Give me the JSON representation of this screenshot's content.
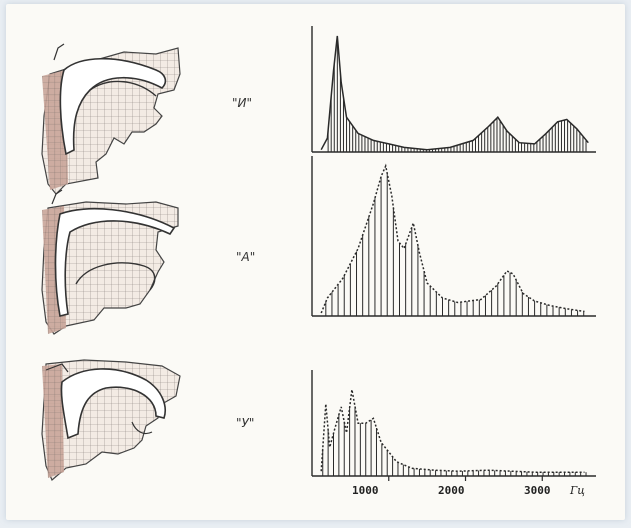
{
  "figure": {
    "background": "#fbfaf6",
    "ink": "#2a2a2a",
    "tissue": "#c9a59a",
    "panels": [
      {
        "sound": "\"И\"",
        "harmonics_hz": [
          210,
          250,
          290,
          330,
          370,
          410,
          450,
          490,
          530,
          570,
          610,
          650,
          690,
          730,
          770,
          810,
          850,
          890,
          930,
          970,
          1010,
          1050,
          1090,
          1130,
          1170,
          1210,
          1250,
          1290,
          1330,
          1370,
          1410,
          1450,
          1490,
          1530,
          1570,
          1610,
          1650,
          1690,
          1730,
          1770,
          1810,
          1850,
          1890,
          1930,
          1970,
          2010,
          2050,
          2090,
          2130,
          2170,
          2210,
          2250,
          2290,
          2330,
          2370,
          2410,
          2450,
          2490,
          2530,
          2570,
          2610,
          2650,
          2690,
          2730,
          2770,
          2810,
          2850,
          2890,
          2930,
          2970,
          3010,
          3050,
          3090,
          3130,
          3170,
          3210,
          3250,
          3290,
          3330,
          3370,
          3410,
          3450,
          3490,
          3530,
          3570
        ],
        "envelope": [
          [
            120,
            0.02
          ],
          [
            200,
            0.12
          ],
          [
            280,
            0.7
          ],
          [
            330,
            1.0
          ],
          [
            380,
            0.6
          ],
          [
            450,
            0.3
          ],
          [
            600,
            0.16
          ],
          [
            800,
            0.1
          ],
          [
            1000,
            0.07
          ],
          [
            1200,
            0.04
          ],
          [
            1500,
            0.02
          ],
          [
            1800,
            0.04
          ],
          [
            2100,
            0.1
          ],
          [
            2300,
            0.22
          ],
          [
            2420,
            0.3
          ],
          [
            2540,
            0.18
          ],
          [
            2700,
            0.08
          ],
          [
            2900,
            0.07
          ],
          [
            3050,
            0.16
          ],
          [
            3200,
            0.26
          ],
          [
            3320,
            0.28
          ],
          [
            3450,
            0.2
          ],
          [
            3600,
            0.08
          ]
        ]
      },
      {
        "sound": "\"А\"",
        "harmonics_hz": [
          180,
          260,
          340,
          420,
          500,
          580,
          660,
          740,
          820,
          900,
          980,
          1060,
          1140,
          1220,
          1300,
          1380,
          1460,
          1540,
          1620,
          1700,
          1780,
          1860,
          1940,
          2020,
          2100,
          2180,
          2260,
          2340,
          2420,
          2500,
          2580,
          2660,
          2740,
          2820,
          2900,
          2980,
          3060,
          3140,
          3220,
          3300,
          3380,
          3460,
          3540
        ],
        "envelope": [
          [
            120,
            0.02
          ],
          [
            200,
            0.12
          ],
          [
            400,
            0.25
          ],
          [
            600,
            0.45
          ],
          [
            800,
            0.75
          ],
          [
            900,
            0.93
          ],
          [
            960,
            1.0
          ],
          [
            1040,
            0.8
          ],
          [
            1120,
            0.5
          ],
          [
            1200,
            0.45
          ],
          [
            1320,
            0.62
          ],
          [
            1400,
            0.42
          ],
          [
            1500,
            0.22
          ],
          [
            1700,
            0.12
          ],
          [
            1900,
            0.09
          ],
          [
            2200,
            0.11
          ],
          [
            2400,
            0.2
          ],
          [
            2540,
            0.3
          ],
          [
            2620,
            0.28
          ],
          [
            2750,
            0.15
          ],
          [
            2900,
            0.1
          ],
          [
            3100,
            0.07
          ],
          [
            3300,
            0.05
          ],
          [
            3550,
            0.03
          ]
        ]
      },
      {
        "sound": "\"У\"",
        "harmonics_hz": [
          140,
          210,
          280,
          350,
          420,
          490,
          560,
          630,
          700,
          770,
          840,
          910,
          980,
          1050,
          1120,
          1190,
          1260,
          1330,
          1400,
          1470,
          1540,
          1610,
          1680,
          1750,
          1820,
          1890,
          1960,
          2030,
          2100,
          2170,
          2240,
          2310,
          2380,
          2450,
          2520,
          2590,
          2660,
          2730,
          2800,
          2870,
          2940,
          3010,
          3080,
          3150,
          3220,
          3290,
          3360,
          3430,
          3500,
          3570
        ],
        "envelope": [
          [
            120,
            0.05
          ],
          [
            180,
            0.75
          ],
          [
            230,
            0.3
          ],
          [
            300,
            0.5
          ],
          [
            380,
            0.72
          ],
          [
            450,
            0.45
          ],
          [
            520,
            0.9
          ],
          [
            600,
            0.55
          ],
          [
            700,
            0.55
          ],
          [
            800,
            0.6
          ],
          [
            900,
            0.35
          ],
          [
            1000,
            0.25
          ],
          [
            1100,
            0.15
          ],
          [
            1300,
            0.08
          ],
          [
            1600,
            0.06
          ],
          [
            1900,
            0.05
          ],
          [
            2300,
            0.06
          ],
          [
            2600,
            0.05
          ],
          [
            2900,
            0.04
          ],
          [
            3300,
            0.04
          ],
          [
            3550,
            0.04
          ]
        ]
      }
    ],
    "axis": {
      "tick_labels": [
        "1000",
        "2000",
        "3000"
      ],
      "tick_values_hz": [
        1000,
        2000,
        3000
      ],
      "unit": "Гц",
      "range_hz": [
        0,
        3700
      ]
    }
  }
}
